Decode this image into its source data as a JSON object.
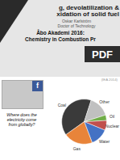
{
  "chart_data": {
    "type": "pie",
    "title": "g, devolatilization &\nxidation of solid fuel",
    "categories": [
      "Coal",
      "Gas",
      "Water",
      "Nuclear",
      "Oil",
      "Other"
    ],
    "values": [
      0.4,
      0.21,
      0.13,
      0.07,
      0.04,
      0.15
    ],
    "colors": [
      "#3a3a3a",
      "#e8843a",
      "#4472c4",
      "#c0504d",
      "#70ad47",
      "#c0c0c0"
    ],
    "annotations": [
      "Oskar Karlström",
      "Doctor of Technology",
      "Åbo Akademi 2016:",
      "Chemistry in Combustion Pr",
      "PDF",
      "f",
      "(IEA 2014)",
      "Where does the",
      "electricity come",
      "from globally?"
    ]
  }
}
